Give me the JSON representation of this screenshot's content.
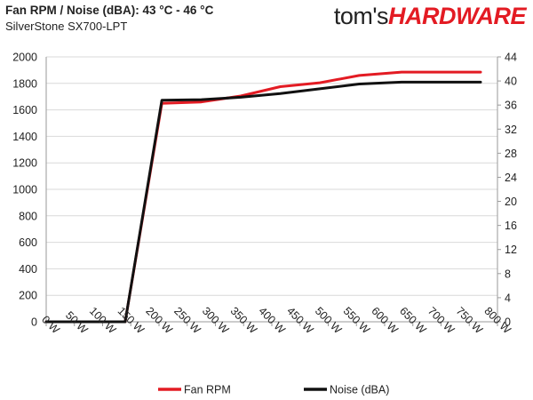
{
  "header": {
    "title": "Fan RPM / Noise (dBA): 43 °C - 46 °C",
    "subtitle": "SilverStone SX700-LPT",
    "brand_part1": "tom's",
    "brand_part2": "HARDWARE"
  },
  "colors": {
    "brand_accent": "#e31b23",
    "fan_rpm": "#e31b23",
    "noise": "#111111",
    "grid": "#d9d9d9"
  },
  "chart_data": {
    "type": "line",
    "x": [
      0,
      50,
      100,
      140,
      205,
      275,
      345,
      415,
      485,
      555,
      630,
      700,
      770
    ],
    "x_ticks": [
      0,
      50,
      100,
      150,
      200,
      250,
      300,
      350,
      400,
      450,
      500,
      550,
      600,
      650,
      700,
      750,
      800
    ],
    "x_tick_labels": [
      "0 W",
      "50 W",
      "100 W",
      "150 W",
      "200 W",
      "250 W",
      "300 W",
      "350 W",
      "400 W",
      "450 W",
      "500 W",
      "550 W",
      "600 W",
      "650 W",
      "700 W",
      "750 W",
      "800 W"
    ],
    "xlim": [
      0,
      800
    ],
    "ylim_left": [
      0,
      2000
    ],
    "y_ticks_left": [
      "0",
      "200",
      "400",
      "600",
      "800",
      "1000",
      "1200",
      "1400",
      "1600",
      "1800",
      "2000"
    ],
    "ylim_right": [
      0,
      44
    ],
    "y_ticks_right": [
      "0",
      "4",
      "8",
      "12",
      "16",
      "20",
      "24",
      "28",
      "32",
      "36",
      "40",
      "44"
    ],
    "grid": true,
    "legend_position": "bottom",
    "series": [
      {
        "name": "Fan RPM",
        "axis": "left",
        "color": "#e31b23",
        "values": [
          0,
          0,
          0,
          0,
          1650,
          1660,
          1705,
          1775,
          1805,
          1860,
          1885,
          1885,
          1885
        ]
      },
      {
        "name": "Noise (dBA)",
        "axis": "right",
        "color": "#111111",
        "values": [
          0,
          0,
          0,
          0,
          36.8,
          36.9,
          37.3,
          37.9,
          38.7,
          39.5,
          39.8,
          39.8,
          39.8
        ]
      }
    ]
  }
}
